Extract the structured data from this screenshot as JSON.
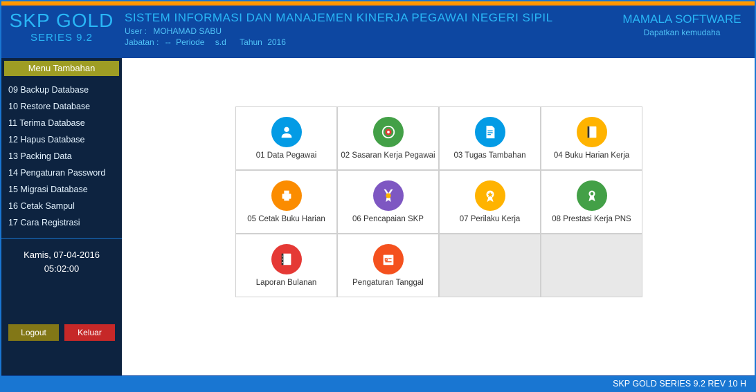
{
  "brand": {
    "title": "SKP GOLD",
    "subtitle": "SERIES 9.2"
  },
  "header": {
    "system_title": "SISTEM INFORMASI DAN MANAJEMEN KINERJA PEGAWAI NEGERI SIPIL",
    "user_label": "User :",
    "user_value": "MOHAMAD SABU",
    "jabatan_label": "Jabatan :",
    "jabatan_value": "--",
    "periode_label": "Periode",
    "periode_value": "s.d",
    "tahun_label": "Tahun",
    "tahun_value": "2016",
    "company": "MAMALA SOFTWARE",
    "tagline": "Dapatkan kemudaha"
  },
  "sidebar": {
    "menu_title": "Menu Tambahan",
    "items": [
      "09  Backup Database",
      "10  Restore Database",
      "11  Terima Database",
      "12  Hapus Database",
      "13  Packing Data",
      "14  Pengaturan Password",
      "15  Migrasi Database",
      "16  Cetak Sampul",
      "17  Cara Registrasi"
    ],
    "date_line": "Kamis,  07-04-2016",
    "time_line": "05:02:00",
    "logout": "Logout",
    "keluar": "Keluar"
  },
  "tiles": [
    {
      "label": "01 Data Pegawai",
      "icon": "user",
      "color": "c-blue"
    },
    {
      "label": "02 Sasaran Kerja Pegawai",
      "icon": "target",
      "color": "c-green"
    },
    {
      "label": "03 Tugas Tambahan",
      "icon": "doc",
      "color": "c-blue"
    },
    {
      "label": "04 Buku Harian Kerja",
      "icon": "book",
      "color": "c-amber"
    },
    {
      "label": "05 Cetak Buku Harian",
      "icon": "printer",
      "color": "c-orange"
    },
    {
      "label": "06 Pencapaian SKP",
      "icon": "medal",
      "color": "c-purple"
    },
    {
      "label": "07 Perilaku Kerja",
      "icon": "badge",
      "color": "c-amber"
    },
    {
      "label": "08 Prestasi Kerja PNS",
      "icon": "ribbon",
      "color": "c-green"
    },
    {
      "label": "Laporan Bulanan",
      "icon": "notebook",
      "color": "c-red"
    },
    {
      "label": "Pengaturan Tanggal",
      "icon": "calendar",
      "color": "c-deeporange"
    }
  ],
  "footer": "SKP GOLD SERIES 9.2  REV 10 H",
  "colors": {
    "header_bg": "#0d47a1",
    "accent": "#29b6f6",
    "sidebar_bg": "#0d2340",
    "menu_header": "#9e9d24",
    "footer_bg": "#1976d2"
  }
}
